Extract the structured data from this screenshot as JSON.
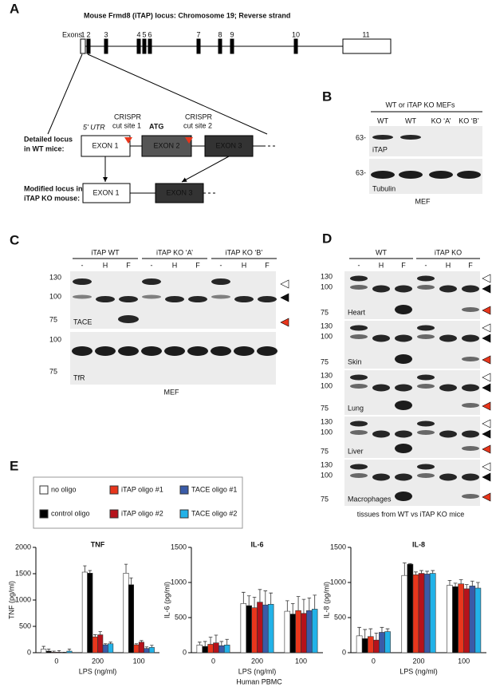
{
  "panel_a": {
    "label": "A",
    "title": "Mouse Frmd8 (iTAP) locus: Chromosome 19; Reverse strand",
    "exons_label": "Exons:",
    "exon_numbers": [
      "1",
      "2",
      "3",
      "4",
      "5",
      "6",
      "7",
      "8",
      "9",
      "10",
      "11"
    ],
    "utr": "5' UTR",
    "cut1": [
      "CRISPR",
      "cut site 1"
    ],
    "atg": "ATG",
    "cut2": [
      "CRISPR",
      "cut site 2"
    ],
    "wt_label": [
      "Detailed locus",
      "in WT mice:"
    ],
    "wt_exons": [
      "EXON 1",
      "EXON 2",
      "EXON 3"
    ],
    "ko_label": [
      "Modified locus in",
      "iTAP KO mouse:"
    ],
    "ko_exons": [
      "EXON 1",
      "EXON 3"
    ]
  },
  "panel_b": {
    "label": "B",
    "header": "WT or iTAP KO MEFs",
    "lanes": [
      "WT",
      "WT",
      "KO ‘A’",
      "KO ‘B’"
    ],
    "marker_1": "63-",
    "marker_2": "63-",
    "blot_1": "iTAP",
    "blot_2": "Tubulin",
    "footer": "MEF"
  },
  "panel_c": {
    "label": "C",
    "groups": [
      "iTAP WT",
      "iTAP KO ‘A’",
      "iTAP KO ‘B’"
    ],
    "lanes": [
      "-",
      "H",
      "F",
      "-",
      "H",
      "F",
      "-",
      "H",
      "F"
    ],
    "markers_top": [
      "130",
      "100",
      "75"
    ],
    "markers_bottom": [
      "100",
      "75"
    ],
    "blot_1": "TACE",
    "blot_2": "TfR",
    "footer": "MEF"
  },
  "panel_d": {
    "label": "D",
    "groups": [
      "WT",
      "iTAP KO"
    ],
    "lanes": [
      "-",
      "H",
      "F",
      "-",
      "H",
      "F"
    ],
    "tissues": [
      "Heart",
      "Skin",
      "Lung",
      "Liver",
      "Macrophages"
    ],
    "markers": [
      "130",
      "100",
      "75"
    ],
    "footer": "tissues from WT vs iTAP KO mice"
  },
  "panel_e": {
    "label": "E",
    "footer": "Human PBMC"
  },
  "chart_data": [
    {
      "type": "bar",
      "title": "TNF",
      "y_label": "TNF (pg/ml)",
      "x_label": "LPS (ng/ml)",
      "categories": [
        "0",
        "200",
        "100"
      ],
      "ylim": [
        0,
        2000
      ],
      "yticks": [
        0,
        500,
        1000,
        1500,
        2000
      ],
      "series": [
        {
          "name": "no oligo",
          "color": "#ffffff",
          "values": [
            70,
            1530,
            1510
          ],
          "errors": [
            50,
            120,
            170
          ]
        },
        {
          "name": "control oligo",
          "color": "#000000",
          "values": [
            30,
            1510,
            1290
          ],
          "errors": [
            40,
            50,
            130
          ]
        },
        {
          "name": "iTAP oligo #1",
          "color": "#e8361c",
          "values": [
            10,
            300,
            150
          ],
          "errors": [
            20,
            40,
            20
          ]
        },
        {
          "name": "iTAP oligo #2",
          "color": "#b5121b",
          "values": [
            10,
            340,
            200
          ],
          "errors": [
            30,
            60,
            30
          ]
        },
        {
          "name": "TACE oligo #1",
          "color": "#3a5ba8",
          "values": [
            0,
            150,
            80
          ],
          "errors": [
            10,
            20,
            30
          ]
        },
        {
          "name": "TACE oligo #2",
          "color": "#22b2e8",
          "values": [
            30,
            170,
            100
          ],
          "errors": [
            40,
            30,
            40
          ]
        }
      ]
    },
    {
      "type": "bar",
      "title": "IL-6",
      "y_label": "IL-6 (pg/ml)",
      "x_label": "LPS (ng/ml)",
      "categories": [
        "0",
        "200",
        "100"
      ],
      "ylim": [
        0,
        1500
      ],
      "yticks": [
        0,
        500,
        1000,
        1500
      ],
      "series": [
        {
          "color": "#ffffff",
          "values": [
            110,
            700,
            590
          ],
          "errors": [
            40,
            160,
            150
          ]
        },
        {
          "color": "#000000",
          "values": [
            90,
            670,
            550
          ],
          "errors": [
            70,
            140,
            150
          ]
        },
        {
          "color": "#e8361c",
          "values": [
            120,
            640,
            600
          ],
          "errors": [
            100,
            150,
            200
          ]
        },
        {
          "color": "#b5121b",
          "values": [
            140,
            720,
            560
          ],
          "errors": [
            110,
            180,
            200
          ]
        },
        {
          "color": "#3a5ba8",
          "values": [
            100,
            680,
            600
          ],
          "errors": [
            60,
            200,
            180
          ]
        },
        {
          "color": "#22b2e8",
          "values": [
            110,
            690,
            620
          ],
          "errors": [
            80,
            160,
            200
          ]
        }
      ]
    },
    {
      "type": "bar",
      "title": "IL-8",
      "y_label": "IL-8 (pg/ml)",
      "x_label": "LPS (ng/ml)",
      "categories": [
        "0",
        "200",
        "100"
      ],
      "ylim": [
        0,
        1500
      ],
      "yticks": [
        0,
        500,
        1000,
        1500
      ],
      "series": [
        {
          "color": "#ffffff",
          "values": [
            240,
            1100,
            960
          ],
          "errors": [
            120,
            180,
            70
          ]
        },
        {
          "color": "#000000",
          "values": [
            200,
            1260,
            940
          ],
          "errors": [
            130,
            10,
            50
          ]
        },
        {
          "color": "#e8361c",
          "values": [
            230,
            1110,
            980
          ],
          "errors": [
            110,
            40,
            60
          ]
        },
        {
          "color": "#b5121b",
          "values": [
            180,
            1130,
            910
          ],
          "errors": [
            100,
            40,
            60
          ]
        },
        {
          "color": "#3a5ba8",
          "values": [
            290,
            1120,
            950
          ],
          "errors": [
            70,
            40,
            70
          ]
        },
        {
          "color": "#22b2e8",
          "values": [
            300,
            1130,
            920
          ],
          "errors": [
            40,
            40,
            80
          ]
        }
      ]
    }
  ]
}
